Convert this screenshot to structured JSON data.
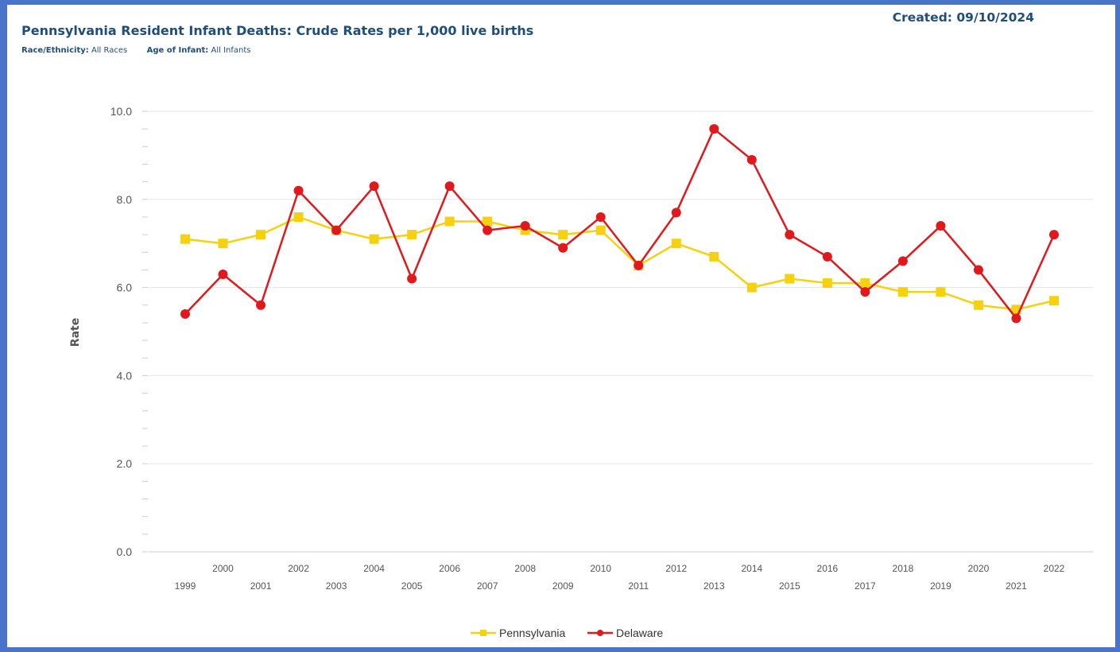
{
  "header": {
    "title": "Pennsylvania Resident Infant Deaths: Crude Rates per 1,000 live births",
    "created": "Created: 09/10/2024",
    "filters": [
      {
        "label": "Race/Ethnicity:",
        "value": "All Races"
      },
      {
        "label": "Age of Infant:",
        "value": "All Infants"
      }
    ]
  },
  "colors": {
    "pennsylvania": "#f5d10f",
    "delaware": "#e0191d",
    "grid": "#e6e6e6",
    "frame": "#4a74c9",
    "title": "#1f4e79"
  },
  "chart_data": {
    "type": "line",
    "title": "Pennsylvania Resident Infant Deaths: Crude Rates per 1,000 live births",
    "xlabel": "",
    "ylabel": "Rate",
    "ylim": [
      0,
      10
    ],
    "y_ticks": [
      "0.0",
      "2.0",
      "4.0",
      "6.0",
      "8.0",
      "10.0"
    ],
    "grid": true,
    "legend_position": "bottom-center",
    "categories": [
      "1999",
      "2000",
      "2001",
      "2002",
      "2003",
      "2004",
      "2005",
      "2006",
      "2007",
      "2008",
      "2009",
      "2010",
      "2011",
      "2012",
      "2013",
      "2014",
      "2015",
      "2016",
      "2017",
      "2018",
      "2019",
      "2020",
      "2021",
      "2022"
    ],
    "series": [
      {
        "name": "Pennsylvania",
        "marker": "square",
        "values": [
          7.1,
          7.0,
          7.2,
          7.6,
          7.3,
          7.1,
          7.2,
          7.5,
          7.5,
          7.3,
          7.2,
          7.3,
          6.5,
          7.0,
          6.7,
          6.0,
          6.2,
          6.1,
          6.1,
          5.9,
          5.9,
          5.6,
          5.5,
          5.7
        ]
      },
      {
        "name": "Delaware",
        "marker": "circle",
        "values": [
          5.4,
          6.3,
          5.6,
          8.2,
          7.3,
          8.3,
          6.2,
          8.3,
          7.3,
          7.4,
          6.9,
          7.6,
          6.5,
          7.7,
          9.6,
          8.9,
          7.2,
          6.7,
          5.9,
          6.6,
          7.4,
          6.4,
          5.3,
          7.2
        ]
      }
    ]
  }
}
